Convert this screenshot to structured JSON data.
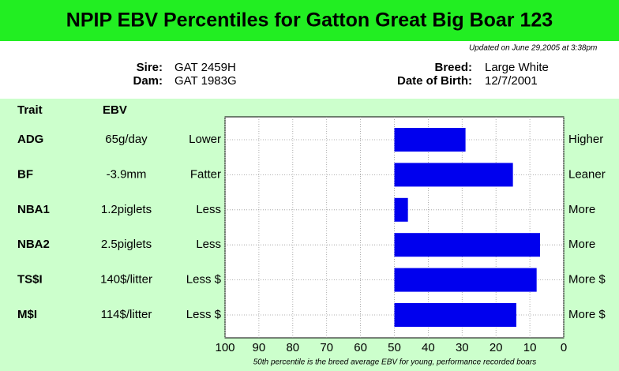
{
  "header": {
    "updated": "Updated on June 29,2005 at 3:38pm",
    "sire_label": "Sire:",
    "sire": "GAT 2459H",
    "dam_label": "Dam:",
    "dam": "GAT 1983G",
    "breed_label": "Breed:",
    "breed": "Large White",
    "dob_label": "Date of Birth:",
    "dob": "12/7/2001"
  },
  "chart_data": {
    "type": "bar",
    "orientation": "horizontal",
    "title": "NPIP EBV Percentiles for Gatton Great Big Boar 123",
    "columns": [
      "Trait",
      "EBV"
    ],
    "categories": [
      "ADG",
      "BF",
      "NBA1",
      "NBA2",
      "TS$I",
      "M$I"
    ],
    "ebv": [
      "65g/day",
      "-3.9mm",
      "1.2piglets",
      "2.5piglets",
      "140$/litter",
      "114$/litter"
    ],
    "low_labels": [
      "Lower",
      "Fatter",
      "Less",
      "Less",
      "Less $",
      "Less $"
    ],
    "high_labels": [
      "Higher",
      "Leaner",
      "More",
      "More",
      "More $",
      "More $"
    ],
    "values": [
      29,
      15,
      46,
      7,
      8,
      14
    ],
    "bar_base": 50,
    "color": "#0000ee",
    "xlim": [
      100,
      0
    ],
    "xticks": [
      100,
      90,
      80,
      70,
      60,
      50,
      40,
      30,
      20,
      10,
      0
    ],
    "grid": true,
    "footnote": "50th percentile is the breed average EBV for young, performance recorded boars"
  }
}
